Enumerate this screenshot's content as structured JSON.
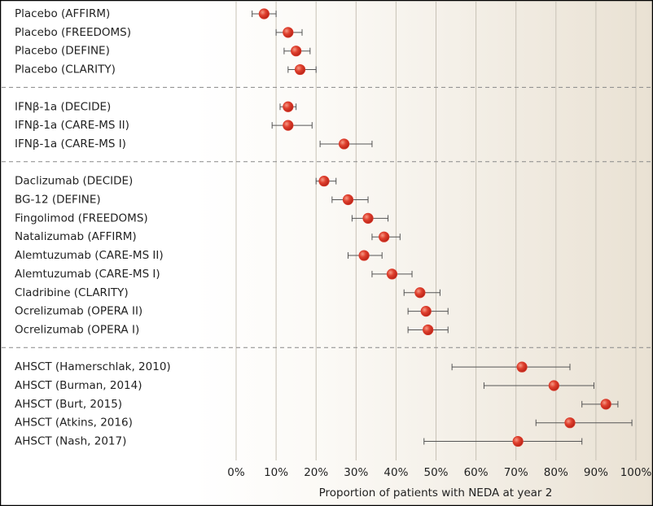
{
  "chart_data": {
    "type": "forest",
    "xlabel": "Proportion of patients with NEDA at year 2",
    "categories": [
      "Placebo (AFFIRM)",
      "Placebo (FREEDOMS)",
      "Placebo (DEFINE)",
      "Placebo (CLARITY)",
      "IFNβ-1a (DECIDE)",
      "IFNβ-1a (CARE-MS II)",
      "IFNβ-1a (CARE-MS I)",
      "Daclizumab (DECIDE)",
      "BG-12 (DEFINE)",
      "Fingolimod (FREEDOMS)",
      "Natalizumab (AFFIRM)",
      "Alemtuzumab (CARE-MS II)",
      "Alemtuzumab (CARE-MS I)",
      "Cladribine (CLARITY)",
      "Ocrelizumab (OPERA II)",
      "Ocrelizumab (OPERA I)",
      "AHSCT (Hamerschlak, 2010)",
      "AHSCT (Burman, 2014)",
      "AHSCT (Burt, 2015)",
      "AHSCT (Atkins, 2016)",
      "AHSCT (Nash, 2017)"
    ],
    "values": [
      7,
      13,
      15,
      16,
      13,
      13,
      27,
      22,
      28,
      33,
      37,
      32,
      39,
      46,
      47.5,
      48,
      71.5,
      79.5,
      92.5,
      83.5,
      70.5
    ],
    "lower": [
      4,
      10,
      12,
      13,
      11,
      9,
      21,
      20,
      24,
      29,
      34,
      28,
      34,
      42,
      43,
      43,
      54,
      62,
      86.5,
      75,
      47
    ],
    "upper": [
      10,
      16.5,
      18.5,
      20,
      15,
      19,
      34,
      25,
      33,
      38,
      41,
      36.5,
      44,
      51,
      53,
      53,
      83.5,
      89.5,
      95.5,
      99,
      86.5
    ],
    "color": "#d93a2b",
    "xlim": [
      0,
      100
    ],
    "xticks": [
      {
        "value": 0,
        "label": "0%"
      },
      {
        "value": 10,
        "label": "10%"
      },
      {
        "value": 20,
        "label": "20%"
      },
      {
        "value": 30,
        "label": "30%"
      },
      {
        "value": 40,
        "label": "40%"
      },
      {
        "value": 50,
        "label": "50%"
      },
      {
        "value": 60,
        "label": "60%"
      },
      {
        "value": 70,
        "label": "70%"
      },
      {
        "value": 80,
        "label": "80%"
      },
      {
        "value": 90,
        "label": "90%"
      },
      {
        "value": 100,
        "label": "100%"
      }
    ],
    "grid": true
  }
}
